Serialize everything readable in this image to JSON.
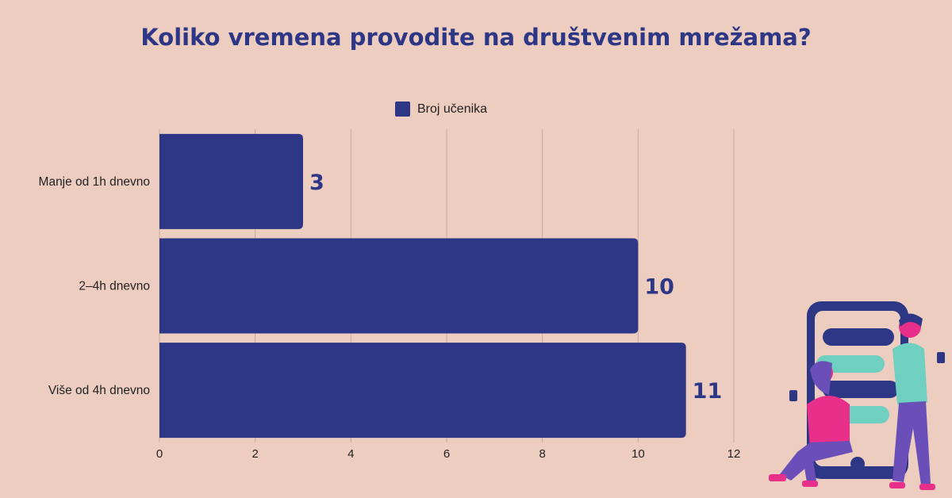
{
  "chart_data": {
    "type": "bar",
    "orientation": "horizontal",
    "title": "Koliko vremena provodite na društvenim mrežama?",
    "categories": [
      "Manje od 1h dnevno",
      "2–4h dnevno",
      "Više od 4h dnevno"
    ],
    "series": [
      {
        "name": "Broj učenika",
        "values": [
          3,
          10,
          11
        ],
        "color": "#2d3785"
      }
    ],
    "xlim": [
      0,
      12
    ],
    "ticks": [
      0,
      2,
      4,
      6,
      8,
      10,
      12
    ],
    "grid": true,
    "legend": "top-center",
    "data_labels": true
  },
  "colors": {
    "background": "#edcdbf",
    "bar": "#2d3785",
    "grid": "#c9a99b",
    "illustration_pink": "#e8308a",
    "illustration_teal": "#6fcfc0",
    "illustration_purple": "#6a4fb8"
  }
}
